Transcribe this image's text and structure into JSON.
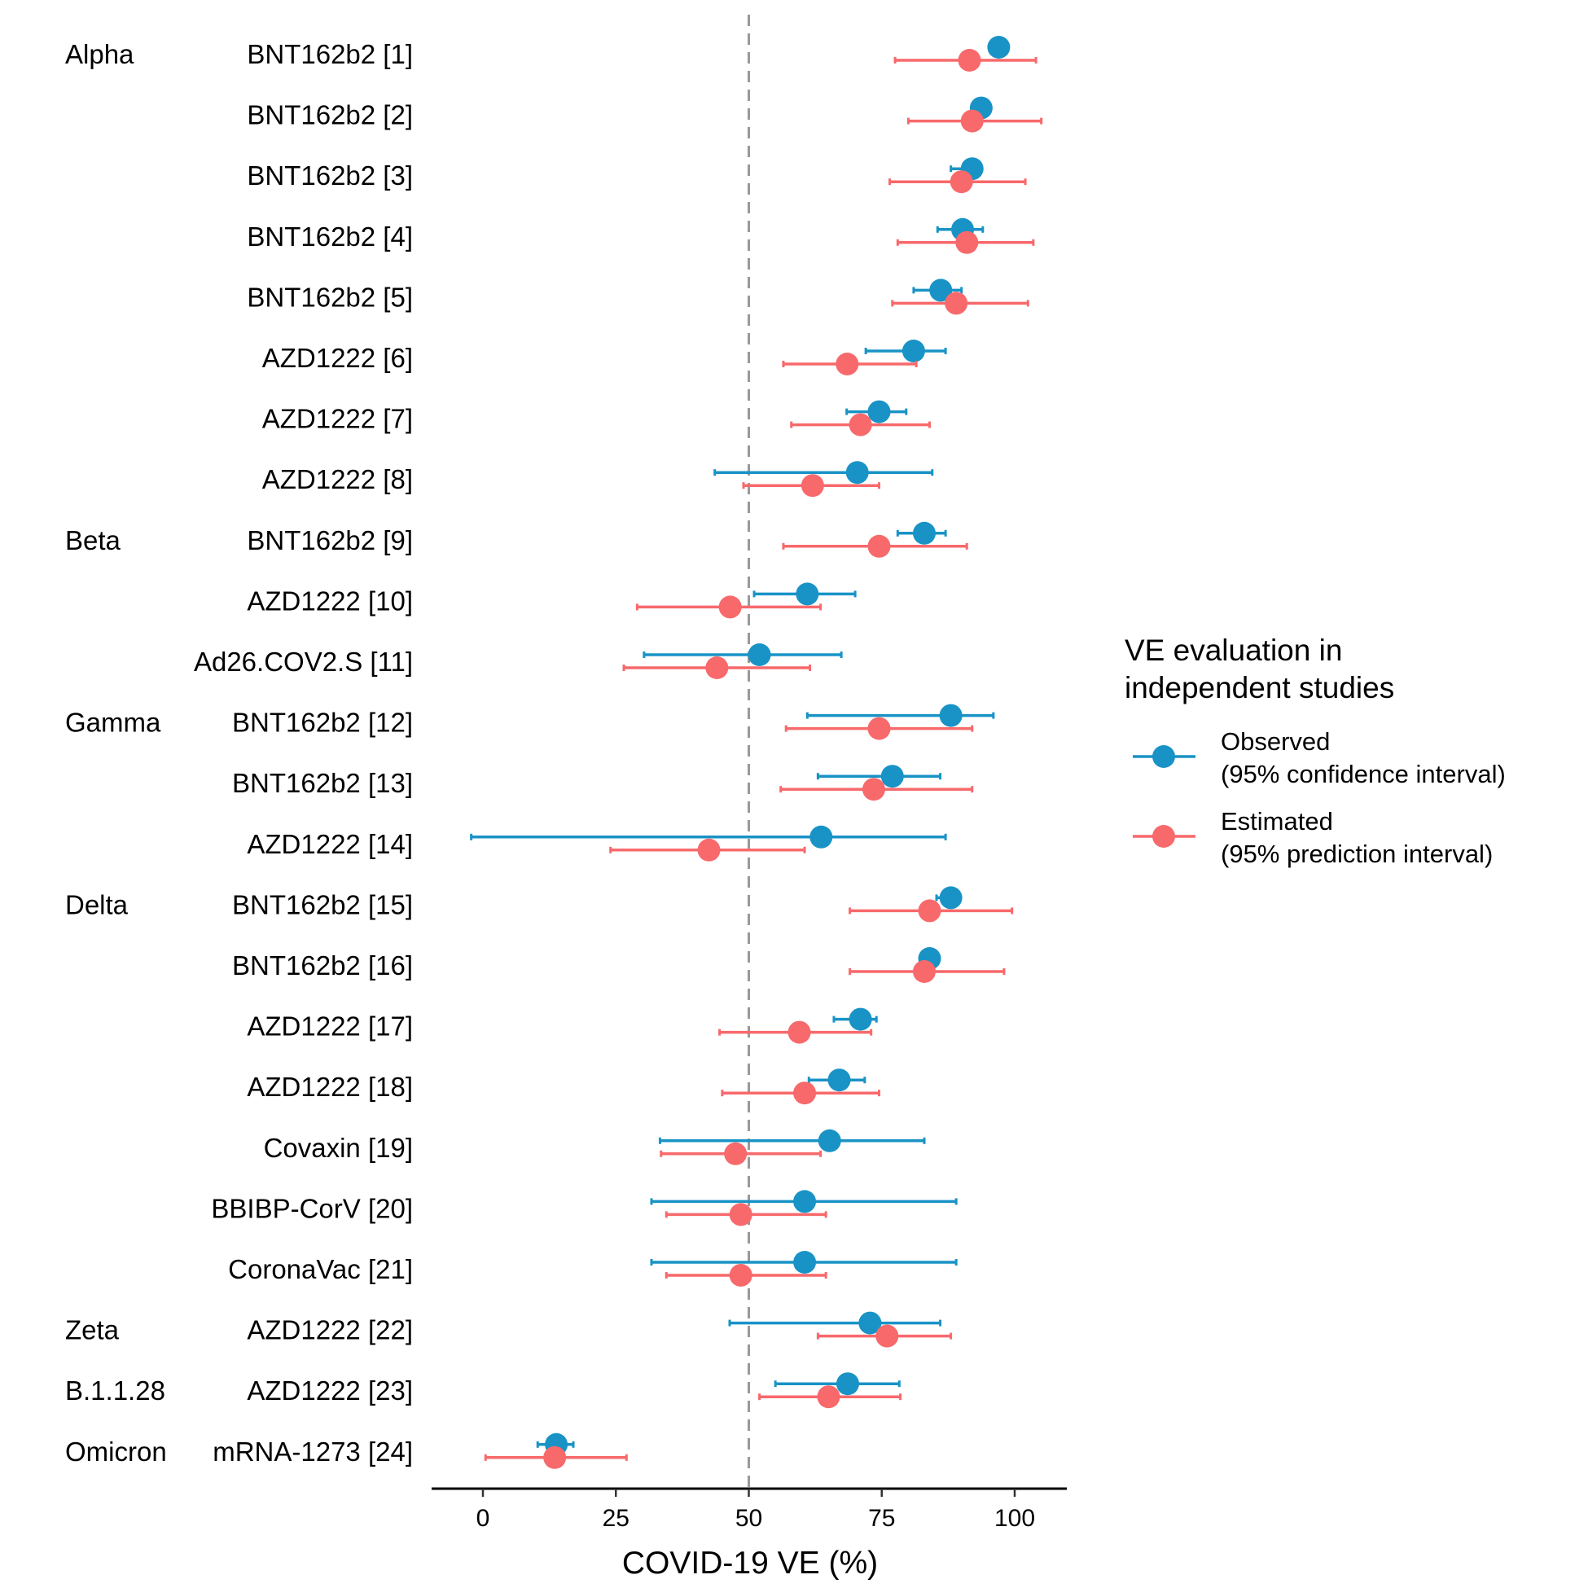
{
  "chart_data": {
    "type": "scatter",
    "subtype": "forest-plot",
    "title": "",
    "xlabel": "COVID-19 VE (%)",
    "ylabel": "",
    "xlim": [
      -10,
      110
    ],
    "xticks": [
      0,
      25,
      50,
      75,
      100
    ],
    "reference_line": {
      "x": 50,
      "style": "dashed",
      "color": "#999999"
    },
    "grid": false,
    "colors": {
      "observed": "#1993C6",
      "estimated": "#F8696B"
    },
    "rows": [
      {
        "group": "Alpha",
        "label": "BNT162b2 [1]",
        "observed": {
          "value": 97,
          "lo": null,
          "hi": null
        },
        "estimated": {
          "value": 91.5,
          "lo": 77.5,
          "hi": 104
        }
      },
      {
        "group": "",
        "label": "BNT162b2 [2]",
        "observed": {
          "value": 93.7,
          "lo": null,
          "hi": null
        },
        "estimated": {
          "value": 92,
          "lo": 80,
          "hi": 105
        }
      },
      {
        "group": "",
        "label": "BNT162b2 [3]",
        "observed": {
          "value": 92,
          "lo": 88,
          "hi": null
        },
        "estimated": {
          "value": 90,
          "lo": 76.5,
          "hi": 102
        }
      },
      {
        "group": "",
        "label": "BNT162b2 [4]",
        "observed": {
          "value": 90.2,
          "lo": 85.5,
          "hi": 94
        },
        "estimated": {
          "value": 91,
          "lo": 78,
          "hi": 103.5
        }
      },
      {
        "group": "",
        "label": "BNT162b2 [5]",
        "observed": {
          "value": 86.1,
          "lo": 81,
          "hi": 90
        },
        "estimated": {
          "value": 89,
          "lo": 77,
          "hi": 102.5
        }
      },
      {
        "group": "",
        "label": "AZD1222 [6]",
        "observed": {
          "value": 81,
          "lo": 72,
          "hi": 87
        },
        "estimated": {
          "value": 68.5,
          "lo": 56.5,
          "hi": 81.5
        }
      },
      {
        "group": "",
        "label": "AZD1222 [7]",
        "observed": {
          "value": 74.5,
          "lo": 68.4,
          "hi": 79.6
        },
        "estimated": {
          "value": 71,
          "lo": 58,
          "hi": 84
        }
      },
      {
        "group": "",
        "label": "AZD1222 [8]",
        "observed": {
          "value": 70.4,
          "lo": 43.6,
          "hi": 84.5
        },
        "estimated": {
          "value": 62,
          "lo": 49,
          "hi": 74.5
        }
      },
      {
        "group": "Beta",
        "label": "BNT162b2 [9]",
        "observed": {
          "value": 83,
          "lo": 78,
          "hi": 87
        },
        "estimated": {
          "value": 74.5,
          "lo": 56.5,
          "hi": 91
        }
      },
      {
        "group": "",
        "label": "AZD1222 [10]",
        "observed": {
          "value": 61,
          "lo": 51,
          "hi": 70
        },
        "estimated": {
          "value": 46.5,
          "lo": 29,
          "hi": 63.5
        }
      },
      {
        "group": "",
        "label": "Ad26.COV2.S [11]",
        "observed": {
          "value": 52,
          "lo": 30.3,
          "hi": 67.4
        },
        "estimated": {
          "value": 44,
          "lo": 26.5,
          "hi": 61.5
        }
      },
      {
        "group": "Gamma",
        "label": "BNT162b2 [12]",
        "observed": {
          "value": 88,
          "lo": 61,
          "hi": 96
        },
        "estimated": {
          "value": 74.5,
          "lo": 57,
          "hi": 92
        }
      },
      {
        "group": "",
        "label": "BNT162b2 [13]",
        "observed": {
          "value": 77,
          "lo": 63,
          "hi": 86
        },
        "estimated": {
          "value": 73.5,
          "lo": 56,
          "hi": 92
        }
      },
      {
        "group": "",
        "label": "AZD1222 [14]",
        "observed": {
          "value": 63.6,
          "lo": -2.2,
          "hi": 87
        },
        "estimated": {
          "value": 42.5,
          "lo": 24,
          "hi": 60.5
        }
      },
      {
        "group": "Delta",
        "label": "BNT162b2 [15]",
        "observed": {
          "value": 88,
          "lo": 85.3,
          "hi": null
        },
        "estimated": {
          "value": 84,
          "lo": 69,
          "hi": 99.5
        }
      },
      {
        "group": "",
        "label": "BNT162b2 [16]",
        "observed": {
          "value": 84,
          "lo": null,
          "hi": null
        },
        "estimated": {
          "value": 83,
          "lo": 69,
          "hi": 98
        }
      },
      {
        "group": "",
        "label": "AZD1222 [17]",
        "observed": {
          "value": 71,
          "lo": 66,
          "hi": 74
        },
        "estimated": {
          "value": 59.5,
          "lo": 44.5,
          "hi": 73
        }
      },
      {
        "group": "",
        "label": "AZD1222 [18]",
        "observed": {
          "value": 67,
          "lo": 61.3,
          "hi": 71.8
        },
        "estimated": {
          "value": 60.5,
          "lo": 45,
          "hi": 74.5
        }
      },
      {
        "group": "",
        "label": "Covaxin [19]",
        "observed": {
          "value": 65.2,
          "lo": 33.3,
          "hi": 83
        },
        "estimated": {
          "value": 47.5,
          "lo": 33.5,
          "hi": 63.5
        }
      },
      {
        "group": "",
        "label": "BBIBP-CorV [20]",
        "observed": {
          "value": 60.5,
          "lo": 31.7,
          "hi": 89
        },
        "estimated": {
          "value": 48.5,
          "lo": 34.5,
          "hi": 64.5
        }
      },
      {
        "group": "",
        "label": "CoronaVac [21]",
        "observed": {
          "value": 60.5,
          "lo": 31.7,
          "hi": 89
        },
        "estimated": {
          "value": 48.5,
          "lo": 34.5,
          "hi": 64.5
        }
      },
      {
        "group": "Zeta",
        "label": "AZD1222 [22]",
        "observed": {
          "value": 72.8,
          "lo": 46.4,
          "hi": 86
        },
        "estimated": {
          "value": 76,
          "lo": 63,
          "hi": 88
        }
      },
      {
        "group": "B.1.1.28",
        "label": "AZD1222 [23]",
        "observed": {
          "value": 68.6,
          "lo": 55,
          "hi": 78.3
        },
        "estimated": {
          "value": 65,
          "lo": 52,
          "hi": 78.5
        }
      },
      {
        "group": "Omicron",
        "label": "mRNA-1273 [24]",
        "observed": {
          "value": 13.8,
          "lo": 10.3,
          "hi": 17
        },
        "estimated": {
          "value": 13.5,
          "lo": 0.5,
          "hi": 27
        }
      }
    ],
    "legend": {
      "title_lines": [
        "VE evaluation in",
        "independent studies"
      ],
      "entries": [
        {
          "key": "observed",
          "lines": [
            "Observed",
            "(95% confidence interval)"
          ]
        },
        {
          "key": "estimated",
          "lines": [
            "Estimated",
            "(95% prediction interval)"
          ]
        }
      ],
      "position": "right"
    }
  }
}
